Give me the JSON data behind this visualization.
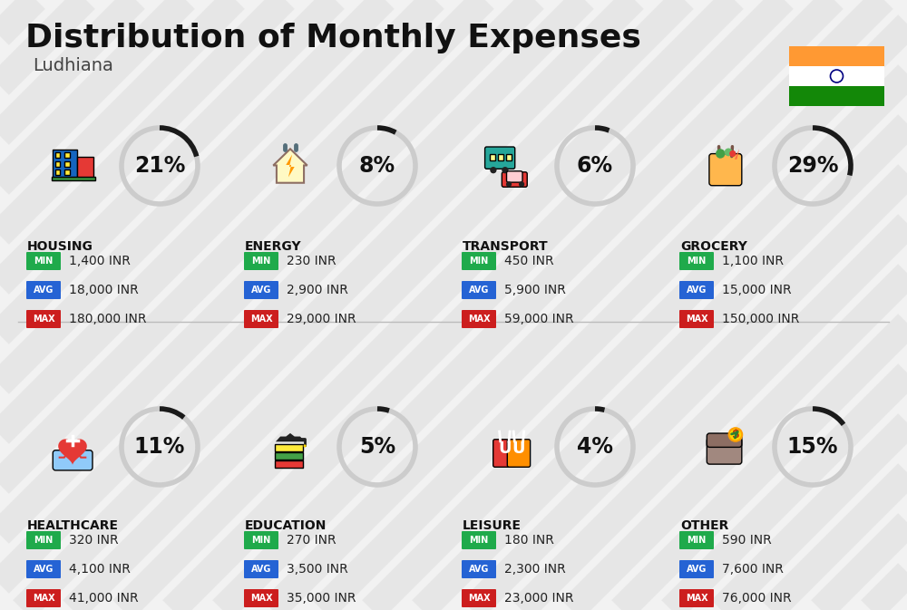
{
  "title": "Distribution of Monthly Expenses",
  "subtitle": "Ludhiana",
  "background_color": "#f2f2f2",
  "categories": [
    {
      "name": "HOUSING",
      "percent": 21,
      "col": 0,
      "row": 0,
      "min": "1,400 INR",
      "avg": "18,000 INR",
      "max": "180,000 INR"
    },
    {
      "name": "ENERGY",
      "percent": 8,
      "col": 1,
      "row": 0,
      "min": "230 INR",
      "avg": "2,900 INR",
      "max": "29,000 INR"
    },
    {
      "name": "TRANSPORT",
      "percent": 6,
      "col": 2,
      "row": 0,
      "min": "450 INR",
      "avg": "5,900 INR",
      "max": "59,000 INR"
    },
    {
      "name": "GROCERY",
      "percent": 29,
      "col": 3,
      "row": 0,
      "min": "1,100 INR",
      "avg": "15,000 INR",
      "max": "150,000 INR"
    },
    {
      "name": "HEALTHCARE",
      "percent": 11,
      "col": 0,
      "row": 1,
      "min": "320 INR",
      "avg": "4,100 INR",
      "max": "41,000 INR"
    },
    {
      "name": "EDUCATION",
      "percent": 5,
      "col": 1,
      "row": 1,
      "min": "270 INR",
      "avg": "3,500 INR",
      "max": "35,000 INR"
    },
    {
      "name": "LEISURE",
      "percent": 4,
      "col": 2,
      "row": 1,
      "min": "180 INR",
      "avg": "2,300 INR",
      "max": "23,000 INR"
    },
    {
      "name": "OTHER",
      "percent": 15,
      "col": 3,
      "row": 1,
      "min": "590 INR",
      "avg": "7,600 INR",
      "max": "76,000 INR"
    }
  ],
  "min_color": "#1faa4b",
  "avg_color": "#2563d4",
  "max_color": "#cc1e1e",
  "arc_filled": "#1a1a1a",
  "arc_empty": "#cccccc",
  "arc_lw": 4,
  "flag_colors": [
    "#ff9933",
    "#ffffff",
    "#138808"
  ],
  "stripe_color": "#d8d8d8",
  "stripe_alpha": 0.45,
  "title_fontsize": 26,
  "subtitle_fontsize": 14,
  "pct_fontsize": 17,
  "cat_fontsize": 10,
  "val_fontsize": 10,
  "badge_fontsize": 7
}
